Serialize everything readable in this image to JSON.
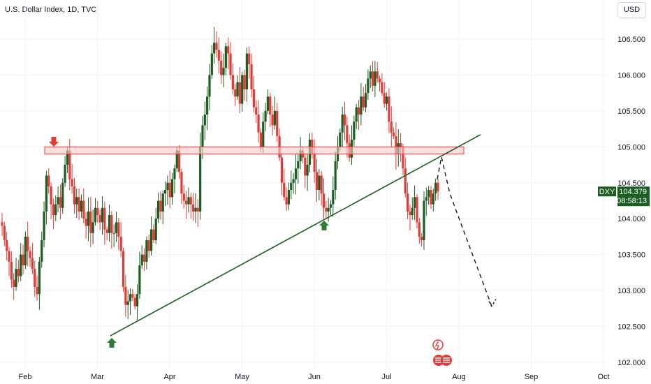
{
  "header": {
    "symbol_title": "U.S. Dollar Index, 1D, TVC",
    "currency_button": "USD"
  },
  "price_tag": {
    "symbol": "DXY",
    "price": "104.379",
    "countdown": "08:58:13"
  },
  "colors": {
    "up": "#1b5e20",
    "down": "#e53935",
    "trendline": "#1b5e20",
    "zone_fill": "#f6c9c9",
    "zone_border": "#e53935",
    "tag_bg": "#1b5e20",
    "arrow_up": "#2e7d32",
    "arrow_down": "#e53935"
  },
  "chart_data": {
    "type": "candlestick",
    "x_range": [
      0,
      9
    ],
    "ylim": [
      102.0,
      106.85
    ],
    "y_ticks": [
      {
        "value": 102.0,
        "label": "102.000"
      },
      {
        "value": 102.5,
        "label": "102.500"
      },
      {
        "value": 103.0,
        "label": "103.000"
      },
      {
        "value": 103.5,
        "label": "103.500"
      },
      {
        "value": 104.0,
        "label": "104.000"
      },
      {
        "value": 104.5,
        "label": "104.500"
      },
      {
        "value": 105.0,
        "label": "105.000"
      },
      {
        "value": 105.5,
        "label": "105.500"
      },
      {
        "value": 106.0,
        "label": "106.000"
      },
      {
        "value": 106.5,
        "label": "106.500"
      }
    ],
    "x_ticks": [
      {
        "value": 0.5,
        "label": "Feb"
      },
      {
        "value": 1.5,
        "label": "Mar"
      },
      {
        "value": 2.5,
        "label": "Apr"
      },
      {
        "value": 3.5,
        "label": "May"
      },
      {
        "value": 4.5,
        "label": "Jun"
      },
      {
        "value": 5.5,
        "label": "Jul"
      },
      {
        "value": 6.5,
        "label": "Aug"
      },
      {
        "value": 7.5,
        "label": "Sep"
      },
      {
        "value": 8.5,
        "label": "Oct"
      }
    ],
    "closes": [
      103.9,
      103.7,
      103.55,
      103.4,
      103.15,
      103.05,
      103.3,
      103.2,
      103.5,
      103.35,
      103.75,
      103.55,
      103.45,
      103.3,
      103.05,
      102.95,
      103.4,
      103.7,
      104.1,
      104.6,
      104.45,
      104.2,
      104.05,
      104.2,
      104.3,
      104.15,
      104.5,
      104.75,
      104.95,
      104.55,
      104.45,
      104.2,
      104.3,
      104.1,
      104.25,
      104.0,
      103.9,
      104.1,
      103.8,
      103.95,
      104.15,
      104.05,
      103.95,
      104.15,
      103.85,
      103.8,
      104.05,
      103.8,
      103.8,
      103.95,
      103.75,
      103.55,
      103.05,
      102.8,
      102.85,
      102.95,
      102.9,
      102.78,
      102.95,
      103.35,
      103.5,
      103.4,
      103.7,
      103.55,
      103.85,
      103.7,
      104.0,
      104.25,
      104.1,
      104.35,
      104.4,
      104.5,
      104.3,
      104.55,
      104.7,
      104.95,
      104.65,
      104.35,
      104.25,
      104.2,
      104.3,
      104.2,
      104.1,
      104.15,
      104.1,
      105.0,
      105.3,
      105.45,
      105.7,
      106.0,
      106.3,
      106.45,
      106.35,
      106.2,
      106.0,
      106.1,
      106.4,
      106.3,
      106.0,
      105.8,
      105.7,
      105.9,
      105.6,
      106.0,
      105.8,
      106.3,
      106.15,
      105.8,
      105.55,
      105.45,
      105.2,
      105.0,
      105.35,
      105.5,
      105.7,
      105.45,
      105.3,
      105.5,
      105.15,
      104.85,
      104.5,
      104.3,
      104.2,
      104.4,
      104.5,
      104.55,
      104.7,
      104.8,
      104.95,
      104.85,
      104.6,
      104.75,
      105.1,
      104.9,
      104.65,
      104.4,
      104.6,
      104.35,
      104.15,
      104.1,
      104.15,
      104.2,
      104.4,
      104.8,
      105.0,
      105.2,
      105.45,
      105.3,
      105.05,
      104.85,
      105.1,
      105.35,
      105.55,
      105.45,
      105.7,
      105.55,
      105.75,
      105.95,
      106.05,
      105.85,
      106.05,
      105.95,
      105.9,
      105.75,
      105.6,
      105.7,
      105.35,
      105.2,
      105.15,
      104.9,
      105.05,
      105.0,
      104.7,
      104.35,
      104.1,
      104.05,
      104.15,
      104.3,
      103.95,
      103.75,
      103.7,
      104.25,
      104.3,
      104.4,
      104.2,
      104.35,
      104.5,
      104.379
    ]
  }
}
